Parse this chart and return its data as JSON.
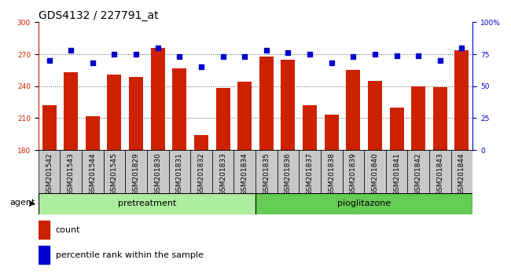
{
  "title": "GDS4132 / 227791_at",
  "categories": [
    "GSM201542",
    "GSM201543",
    "GSM201544",
    "GSM201545",
    "GSM201829",
    "GSM201830",
    "GSM201831",
    "GSM201832",
    "GSM201833",
    "GSM201834",
    "GSM201835",
    "GSM201836",
    "GSM201837",
    "GSM201838",
    "GSM201839",
    "GSM201840",
    "GSM201841",
    "GSM201842",
    "GSM201843",
    "GSM201844"
  ],
  "bar_values": [
    222,
    253,
    212,
    251,
    249,
    276,
    257,
    194,
    238,
    244,
    268,
    265,
    222,
    213,
    255,
    245,
    220,
    240,
    239,
    274
  ],
  "percentile_values": [
    70,
    78,
    68,
    75,
    75,
    80,
    73,
    65,
    73,
    73,
    78,
    76,
    75,
    68,
    73,
    75,
    74,
    74,
    70,
    80
  ],
  "ylim_left": [
    180,
    300
  ],
  "ylim_right": [
    0,
    100
  ],
  "yticks_left": [
    180,
    210,
    240,
    270,
    300
  ],
  "yticks_right": [
    0,
    25,
    50,
    75,
    100
  ],
  "ytick_right_labels": [
    "0",
    "25",
    "50",
    "75",
    "100%"
  ],
  "bar_color": "#cc2200",
  "marker_color": "#0000cc",
  "pretreatment_color": "#aeed9e",
  "pioglitazone_color": "#66cc55",
  "pretreatment_label": "pretreatment",
  "pioglitazone_label": "pioglitazone",
  "pretreatment_count": 10,
  "pioglitazone_count": 10,
  "agent_label": "agent",
  "legend_count_label": "count",
  "legend_pct_label": "percentile rank within the sample",
  "title_fontsize": 10,
  "tick_fontsize": 6.5,
  "label_fontsize": 8,
  "xtick_bg_color": "#c8c8c8",
  "grid_dotted_color": "#555555"
}
